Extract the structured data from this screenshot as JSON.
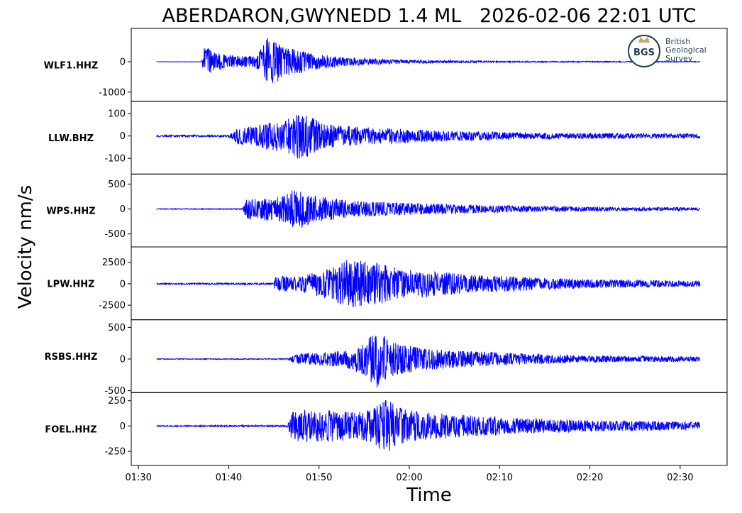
{
  "chart_data": {
    "type": "line",
    "title": "ABERDARON,GWYNEDD 1.4 ML   2026-02-06 22:01 UTC",
    "xlabel": "Time",
    "ylabel": "Velocity nm/s",
    "x_ticks": [
      "01:30",
      "01:40",
      "01:50",
      "02:00",
      "02:10",
      "02:20",
      "02:30"
    ],
    "x_tick_minutes": [
      90,
      100,
      110,
      120,
      130,
      140,
      150
    ],
    "xlim_minutes": [
      89.2,
      155.2
    ],
    "trace_start_minute": 92.0,
    "trace_end_minute": 152.2,
    "line_color": "#0000ff",
    "logo": {
      "abbrev": "BGS",
      "lines": [
        "British",
        "Geological",
        "Survey"
      ]
    },
    "series": [
      {
        "name": "WLF1.HHZ",
        "ylim": [
          -1300,
          1100
        ],
        "yticks": [
          0,
          -1000
        ],
        "ytick_labels": [
          "0",
          "-1000"
        ],
        "envelope": [
          [
            92,
            3
          ],
          [
            97,
            5
          ],
          [
            97.3,
            560
          ],
          [
            98.5,
            300
          ],
          [
            101,
            190
          ],
          [
            103,
            180
          ],
          [
            103.8,
            520
          ],
          [
            104.5,
            900
          ],
          [
            106,
            520
          ],
          [
            108,
            380
          ],
          [
            110,
            250
          ],
          [
            114,
            120
          ],
          [
            120,
            55
          ],
          [
            130,
            22
          ],
          [
            152.2,
            12
          ]
        ]
      },
      {
        "name": "LLW.BHZ",
        "ylim": [
          -170,
          155
        ],
        "yticks": [
          100,
          0,
          -100
        ],
        "ytick_labels": [
          "100",
          "0",
          "-100"
        ],
        "envelope": [
          [
            92,
            4
          ],
          [
            100,
            5
          ],
          [
            101,
            35
          ],
          [
            103,
            45
          ],
          [
            104,
            60
          ],
          [
            106,
            70
          ],
          [
            107.5,
            105
          ],
          [
            109,
            90
          ],
          [
            110.5,
            55
          ],
          [
            113,
            45
          ],
          [
            116,
            38
          ],
          [
            120,
            30
          ],
          [
            125,
            22
          ],
          [
            135,
            14
          ],
          [
            152.2,
            10
          ]
        ]
      },
      {
        "name": "WPS.HHZ",
        "ylim": [
          -760,
          700
        ],
        "yticks": [
          500,
          0,
          -500
        ],
        "ytick_labels": [
          "500",
          "0",
          "-500"
        ],
        "envelope": [
          [
            92,
            8
          ],
          [
            101.5,
            10
          ],
          [
            102,
            200
          ],
          [
            104,
            230
          ],
          [
            106,
            250
          ],
          [
            107.5,
            450
          ],
          [
            108.5,
            330
          ],
          [
            110,
            260
          ],
          [
            114,
            160
          ],
          [
            120,
            120
          ],
          [
            126,
            90
          ],
          [
            133,
            60
          ],
          [
            142,
            40
          ],
          [
            152.2,
            30
          ]
        ]
      },
      {
        "name": "LPW.HHZ",
        "ylim": [
          -4200,
          4300
        ],
        "yticks": [
          2500,
          0,
          -2500
        ],
        "ytick_labels": [
          "2500",
          "0",
          "-2500"
        ],
        "envelope": [
          [
            92,
            80
          ],
          [
            105,
            100
          ],
          [
            105.2,
            1100
          ],
          [
            107,
            800
          ],
          [
            109,
            1200
          ],
          [
            111,
            1800
          ],
          [
            113.3,
            2900
          ],
          [
            115,
            2600
          ],
          [
            117,
            2400
          ],
          [
            119,
            1700
          ],
          [
            123,
            1400
          ],
          [
            128,
            1000
          ],
          [
            135,
            700
          ],
          [
            143,
            450
          ],
          [
            152.2,
            350
          ]
        ]
      },
      {
        "name": "RSBS.HHZ",
        "ylim": [
          -530,
          620
        ],
        "yticks": [
          500,
          0,
          -500
        ],
        "ytick_labels": [
          "500",
          "0",
          "-500"
        ],
        "envelope": [
          [
            92,
            6
          ],
          [
            106.5,
            8
          ],
          [
            107.5,
            80
          ],
          [
            110,
            100
          ],
          [
            113,
            140
          ],
          [
            115,
            250
          ],
          [
            116.3,
            480
          ],
          [
            118,
            280
          ],
          [
            121,
            180
          ],
          [
            126,
            130
          ],
          [
            132,
            90
          ],
          [
            140,
            55
          ],
          [
            152.2,
            40
          ]
        ]
      },
      {
        "name": "FOEL.HHZ",
        "ylim": [
          -390,
          330
        ],
        "yticks": [
          250,
          0,
          -250
        ],
        "ytick_labels": [
          "250",
          "0",
          "-250"
        ],
        "envelope": [
          [
            92,
            6
          ],
          [
            106.5,
            8
          ],
          [
            107,
            140
          ],
          [
            109,
            170
          ],
          [
            112,
            150
          ],
          [
            115,
            140
          ],
          [
            117.5,
            270
          ],
          [
            119,
            180
          ],
          [
            122,
            140
          ],
          [
            126,
            110
          ],
          [
            132,
            80
          ],
          [
            140,
            55
          ],
          [
            152.2,
            40
          ]
        ]
      }
    ]
  }
}
